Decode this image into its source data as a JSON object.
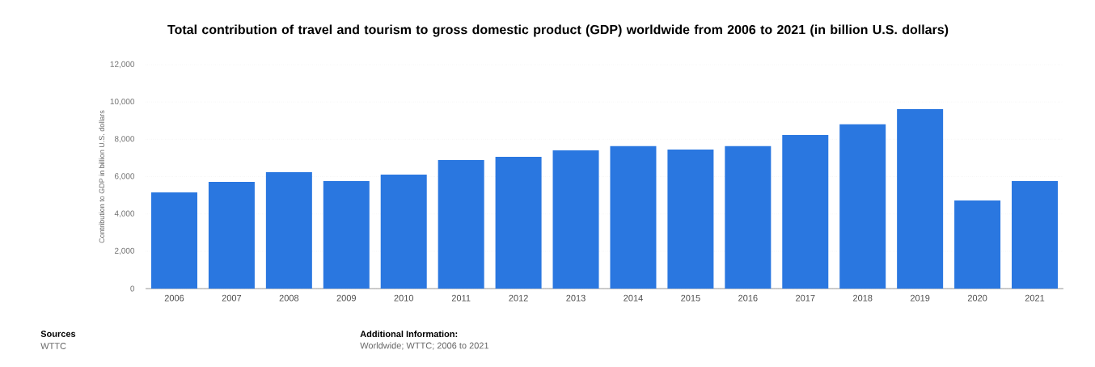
{
  "chart_data": {
    "type": "bar",
    "title": "Total contribution of travel and tourism to gross domestic product (GDP) worldwide from 2006 to 2021 (in billion U.S. dollars)",
    "ylabel": "Contribution to GDP in billion U.S. dollars",
    "categories": [
      "2006",
      "2007",
      "2008",
      "2009",
      "2010",
      "2011",
      "2012",
      "2013",
      "2014",
      "2015",
      "2016",
      "2017",
      "2018",
      "2019",
      "2020",
      "2021"
    ],
    "values": [
      5160,
      5720,
      6240,
      5760,
      6110,
      6890,
      7060,
      7410,
      7630,
      7450,
      7630,
      8230,
      8800,
      9620,
      4720,
      5760
    ],
    "color": "#2a77e0",
    "ylim": [
      0,
      12000
    ],
    "yticks": [
      0,
      {
        "value": 2000,
        "label": "2,000"
      },
      {
        "value": 4000,
        "label": "4,000"
      },
      {
        "value": 6000,
        "label": "6,000"
      },
      {
        "value": 8000,
        "label": "8,000"
      },
      {
        "value": 10000,
        "label": "10,000"
      },
      {
        "value": 12000,
        "label": "12,000"
      }
    ],
    "grid": "y",
    "annotations": [
      "Sources",
      "WTTC",
      "Additional Information:",
      "Worldwide; WTTC; 2006 to 2021"
    ]
  }
}
